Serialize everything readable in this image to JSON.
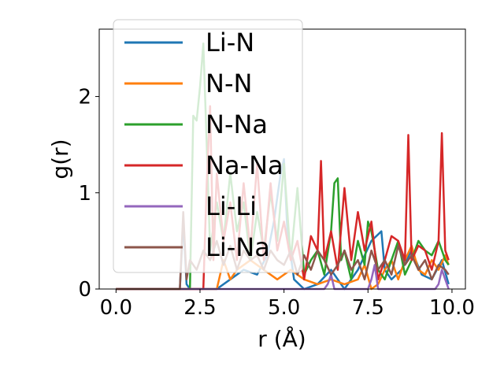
{
  "chart_data": {
    "type": "line",
    "title": "",
    "xlabel": "r (Å)",
    "ylabel": "g(r)",
    "xlim": [
      -0.5,
      10.4
    ],
    "ylim": [
      0,
      2.7
    ],
    "xticks": [
      0.0,
      2.5,
      5.0,
      7.5,
      10.0
    ],
    "xtick_labels": [
      "0.0",
      "2.5",
      "5.0",
      "7.5",
      "10.0"
    ],
    "yticks": [
      0,
      1,
      2
    ],
    "ytick_labels": [
      "0",
      "1",
      "2"
    ],
    "grid": false,
    "legend_position": "upper-left",
    "series": [
      {
        "name": "Li-N",
        "color": "#1f77b4",
        "x": [
          0.0,
          1.9,
          2.0,
          2.1,
          2.2,
          2.4,
          2.6,
          2.8,
          3.0,
          3.4,
          3.8,
          4.2,
          4.5,
          4.7,
          4.9,
          5.0,
          5.1,
          5.3,
          5.6,
          6.0,
          6.4,
          6.6,
          6.8,
          7.2,
          7.6,
          7.9,
          8.0,
          8.2,
          8.5,
          8.8,
          9.1,
          9.4,
          9.7,
          9.9
        ],
        "y": [
          0,
          0,
          0.7,
          0.05,
          0,
          0,
          0,
          0,
          0,
          0.1,
          0.2,
          0.15,
          0.35,
          0.7,
          1.2,
          1.35,
          0.6,
          0.1,
          0,
          0.05,
          0.2,
          0.1,
          0,
          0.2,
          0.5,
          0.6,
          0.2,
          0.1,
          0.2,
          0.4,
          0.15,
          0.1,
          0.3,
          0.05
        ]
      },
      {
        "name": "N-N",
        "color": "#ff7f0e",
        "x": [
          0.0,
          3.0,
          3.2,
          3.4,
          3.6,
          4.0,
          4.4,
          4.8,
          5.2,
          5.6,
          6.0,
          6.4,
          6.8,
          7.2,
          7.4,
          7.6,
          7.8,
          8.0,
          8.2,
          8.4,
          8.6,
          8.8,
          9.0,
          9.2,
          9.4,
          9.6,
          9.8,
          9.9
        ],
        "y": [
          0,
          0,
          0.3,
          0.1,
          0.2,
          0.3,
          0.2,
          0.1,
          0.2,
          0.1,
          0.05,
          0.1,
          0.05,
          0.1,
          0.25,
          0,
          0.05,
          0.2,
          0.3,
          0.1,
          0.3,
          0.45,
          0.2,
          0.15,
          0.3,
          0.2,
          0.35,
          0.25
        ]
      },
      {
        "name": "N-Na",
        "color": "#2ca02c",
        "x": [
          0.0,
          2.2,
          2.3,
          2.4,
          2.5,
          2.6,
          2.7,
          2.8,
          3.0,
          3.2,
          3.4,
          3.6,
          3.8,
          4.0,
          4.2,
          4.4,
          4.6,
          4.8,
          5.0,
          5.2,
          5.4,
          5.6,
          5.8,
          6.0,
          6.2,
          6.4,
          6.5,
          6.6,
          6.7,
          6.8,
          7.0,
          7.2,
          7.4,
          7.5,
          7.6,
          7.8,
          8.0,
          8.2,
          8.4,
          8.6,
          8.8,
          9.0,
          9.2,
          9.4,
          9.6,
          9.8,
          9.9
        ],
        "y": [
          0,
          0,
          1.8,
          1.75,
          2.1,
          2.55,
          1.5,
          0.4,
          0.9,
          0.5,
          1.2,
          0.6,
          0.9,
          0.3,
          0.8,
          0.4,
          1.0,
          0.5,
          1.3,
          0.3,
          1.05,
          0.15,
          0.3,
          0.4,
          0.15,
          0.6,
          1.1,
          1.15,
          0.3,
          0.4,
          0.1,
          0.5,
          0.25,
          0.7,
          0.6,
          0.2,
          0.1,
          0.3,
          0.5,
          0.15,
          0.3,
          0.5,
          0.4,
          0.35,
          0.5,
          0.3,
          0.25
        ]
      },
      {
        "name": "Na-Na",
        "color": "#d62728",
        "x": [
          0.0,
          2.6,
          2.7,
          2.8,
          2.9,
          3.0,
          3.2,
          3.4,
          3.6,
          3.8,
          4.0,
          4.2,
          4.4,
          4.6,
          4.8,
          5.0,
          5.2,
          5.4,
          5.6,
          5.8,
          6.0,
          6.1,
          6.2,
          6.4,
          6.6,
          6.8,
          7.0,
          7.2,
          7.4,
          7.6,
          7.8,
          8.0,
          8.2,
          8.4,
          8.6,
          8.7,
          8.8,
          9.0,
          9.2,
          9.4,
          9.6,
          9.7,
          9.8,
          9.9
        ],
        "y": [
          0,
          0,
          1.1,
          1.9,
          0.3,
          1.2,
          0.5,
          0.9,
          0.3,
          1.1,
          0.4,
          1.3,
          0.3,
          1.1,
          0.4,
          0.7,
          0.3,
          0.5,
          0.1,
          0.55,
          0.4,
          1.33,
          0.3,
          0.6,
          0.2,
          1.05,
          0.3,
          0.8,
          0.4,
          0.7,
          0.1,
          0.3,
          0.55,
          0.5,
          0.3,
          1.6,
          0.3,
          0.45,
          0.4,
          0.2,
          0.5,
          1.62,
          0.4,
          0.3
        ]
      },
      {
        "name": "Li-Li",
        "color": "#9467bd",
        "x": [
          0.0,
          6.2,
          6.3,
          6.4,
          6.5,
          7.5,
          7.6,
          7.7,
          7.8,
          9.5,
          9.6,
          9.7,
          9.8,
          9.9
        ],
        "y": [
          0,
          0,
          0.05,
          0.15,
          0,
          0,
          0.1,
          0.25,
          0,
          0,
          0.05,
          0.2,
          0.1,
          0
        ]
      },
      {
        "name": "Li-Na",
        "color": "#8c564b",
        "x": [
          0.0,
          1.9,
          2.0,
          2.1,
          2.2,
          2.4,
          2.6,
          2.8,
          3.0,
          3.2,
          3.4,
          3.6,
          3.8,
          4.0,
          4.2,
          4.4,
          4.6,
          4.8,
          5.0,
          5.2,
          5.4,
          5.6,
          5.8,
          6.0,
          6.2,
          6.4,
          6.6,
          6.8,
          7.0,
          7.2,
          7.4,
          7.6,
          7.8,
          8.0,
          8.2,
          8.4,
          8.6,
          8.8,
          9.0,
          9.2,
          9.4,
          9.6,
          9.8,
          9.9
        ],
        "y": [
          0,
          0,
          0.8,
          0.1,
          0.3,
          0.2,
          0.4,
          0.3,
          0.5,
          0.25,
          0.45,
          0.2,
          0.4,
          0.3,
          0.35,
          0.2,
          0.4,
          0.3,
          0.25,
          0.4,
          0.15,
          0.35,
          0.2,
          0.4,
          0.3,
          0.15,
          0.25,
          0.4,
          0.2,
          0.3,
          0.1,
          0.4,
          0.2,
          0.3,
          0.15,
          0.45,
          0.25,
          0.35,
          0.2,
          0.3,
          0.1,
          0.25,
          0.2,
          0.15
        ]
      }
    ]
  }
}
